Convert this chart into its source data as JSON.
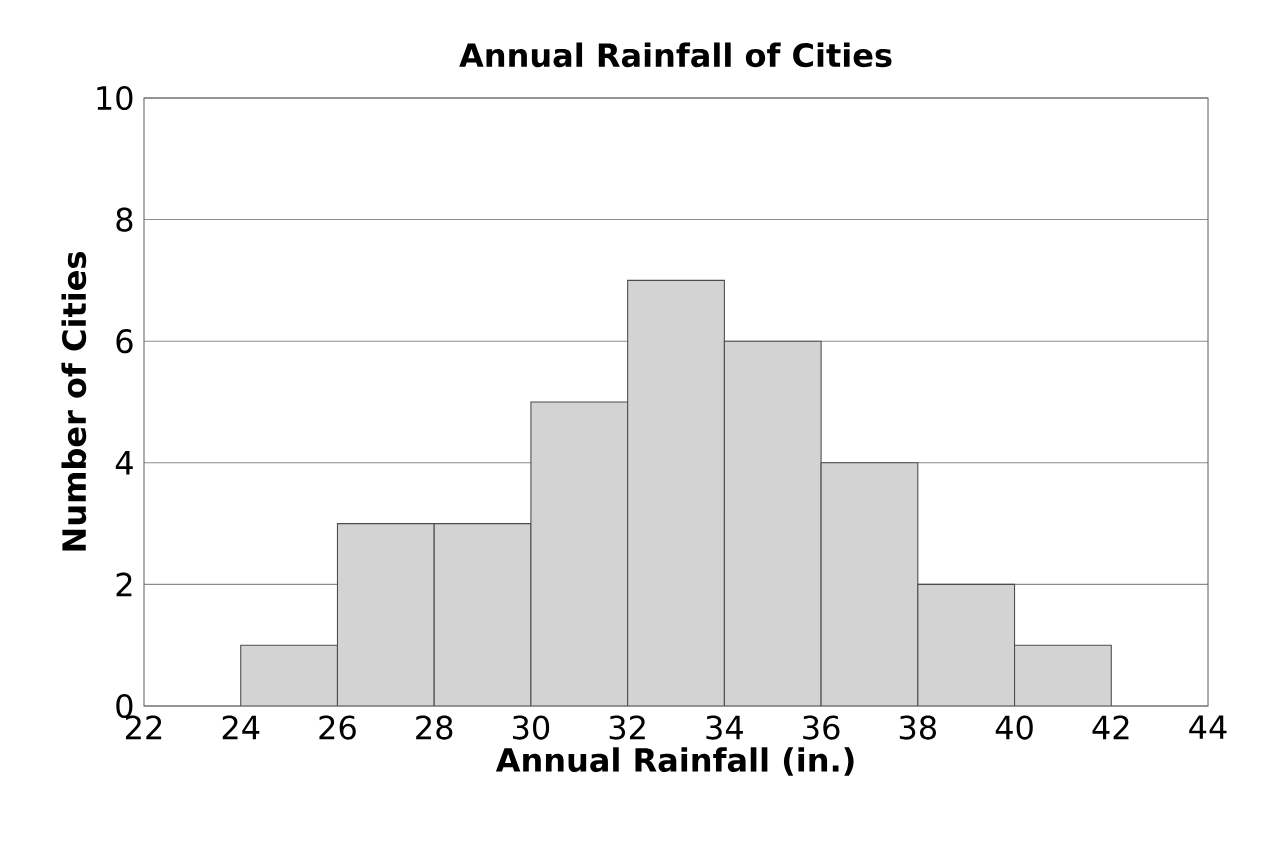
{
  "chart_data": {
    "type": "histogram",
    "title": "Annual Rainfall of Cities",
    "xlabel": "Annual Rainfall (in.)",
    "ylabel": "Number of Cities",
    "bins": [
      24,
      26,
      28,
      30,
      32,
      34,
      36,
      38,
      40,
      42
    ],
    "values": [
      1,
      3,
      3,
      5,
      7,
      6,
      4,
      2,
      1
    ],
    "color": "#d3d3d3",
    "xlim": [
      22,
      44
    ],
    "xticks": [
      22,
      24,
      26,
      28,
      30,
      32,
      34,
      36,
      38,
      40,
      42,
      44
    ],
    "ylim": [
      0,
      10
    ],
    "yticks": [
      0,
      2,
      4,
      6,
      8,
      10
    ],
    "grid": "y"
  }
}
